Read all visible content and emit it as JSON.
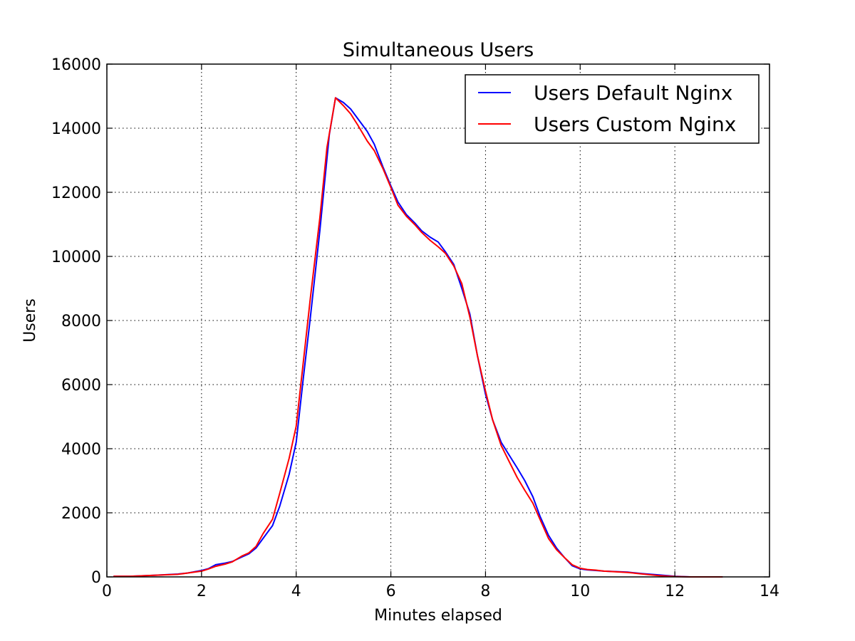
{
  "chart_data": {
    "type": "line",
    "title": "Simultaneous Users",
    "xlabel": "Minutes elapsed",
    "ylabel": "Users",
    "xlim": [
      0,
      14
    ],
    "ylim": [
      0,
      16000
    ],
    "xticks": [
      0,
      2,
      4,
      6,
      8,
      10,
      12,
      14
    ],
    "yticks": [
      0,
      2000,
      4000,
      6000,
      8000,
      10000,
      12000,
      14000,
      16000
    ],
    "grid": true,
    "legend_position": "top-right",
    "series": [
      {
        "name": "Users Default Nginx",
        "color": "#0000ff",
        "x": [
          0.15,
          0.5,
          1.0,
          1.5,
          1.7,
          2.0,
          2.15,
          2.3,
          2.5,
          2.65,
          2.85,
          3.0,
          3.15,
          3.3,
          3.5,
          3.65,
          3.85,
          4.0,
          4.15,
          4.3,
          4.5,
          4.7,
          4.83,
          5.0,
          5.15,
          5.3,
          5.5,
          5.65,
          5.83,
          6.0,
          6.15,
          6.33,
          6.5,
          6.65,
          6.83,
          7.0,
          7.15,
          7.33,
          7.5,
          7.67,
          7.83,
          8.0,
          8.15,
          8.33,
          8.5,
          8.67,
          8.83,
          9.0,
          9.15,
          9.33,
          9.5,
          9.67,
          9.83,
          10.0,
          10.15,
          10.33,
          10.5,
          11.0,
          11.33,
          11.67,
          12.0,
          12.33,
          12.67,
          13.0
        ],
        "values": [
          20,
          20,
          50,
          90,
          120,
          200,
          260,
          380,
          430,
          480,
          620,
          720,
          900,
          1200,
          1600,
          2200,
          3200,
          4200,
          6200,
          8100,
          10800,
          13800,
          14950,
          14800,
          14600,
          14300,
          13900,
          13500,
          12800,
          12200,
          11700,
          11300,
          11050,
          10800,
          10600,
          10450,
          10150,
          9750,
          9000,
          8200,
          6900,
          5700,
          4900,
          4200,
          3800,
          3400,
          3000,
          2500,
          1900,
          1300,
          900,
          600,
          350,
          250,
          220,
          200,
          180,
          150,
          100,
          60,
          20,
          0,
          0,
          0
        ]
      },
      {
        "name": "Users Custom Nginx",
        "color": "#ff0000",
        "x": [
          0.15,
          0.5,
          1.0,
          1.5,
          1.7,
          2.0,
          2.15,
          2.3,
          2.5,
          2.65,
          2.85,
          3.0,
          3.15,
          3.3,
          3.5,
          3.65,
          3.85,
          4.0,
          4.15,
          4.3,
          4.5,
          4.65,
          4.83,
          5.0,
          5.15,
          5.3,
          5.5,
          5.65,
          5.83,
          6.0,
          6.15,
          6.33,
          6.5,
          6.65,
          6.83,
          7.0,
          7.15,
          7.33,
          7.5,
          7.67,
          7.83,
          8.0,
          8.15,
          8.33,
          8.5,
          8.67,
          8.83,
          9.0,
          9.15,
          9.33,
          9.5,
          9.67,
          9.83,
          10.0,
          10.15,
          10.33,
          10.5,
          11.0,
          11.33,
          11.67,
          12.0,
          12.33,
          12.67,
          13.0
        ],
        "values": [
          20,
          20,
          50,
          80,
          120,
          180,
          250,
          330,
          400,
          470,
          650,
          750,
          950,
          1350,
          1800,
          2600,
          3700,
          4700,
          6700,
          8700,
          11200,
          13400,
          14950,
          14700,
          14450,
          14100,
          13600,
          13300,
          12750,
          12150,
          11600,
          11250,
          11000,
          10750,
          10500,
          10300,
          10100,
          9700,
          9150,
          8100,
          6900,
          5800,
          4900,
          4100,
          3600,
          3100,
          2700,
          2300,
          1800,
          1200,
          850,
          600,
          380,
          270,
          230,
          210,
          180,
          140,
          90,
          40,
          10,
          0,
          0,
          0
        ]
      }
    ]
  }
}
